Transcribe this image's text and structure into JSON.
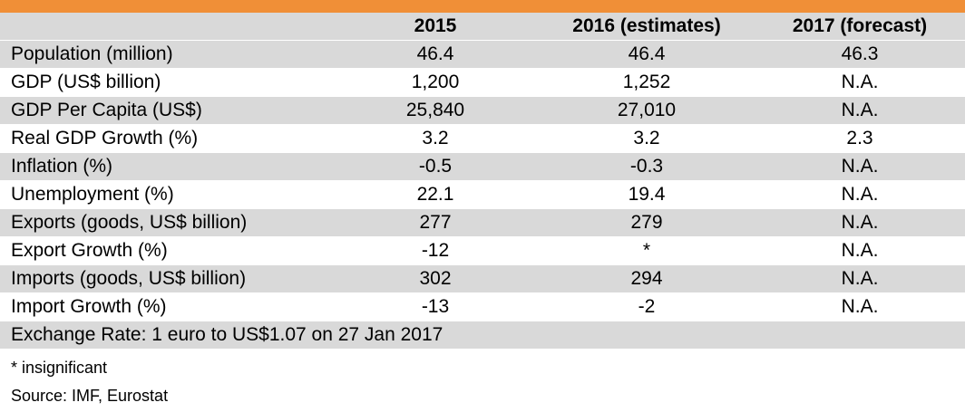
{
  "header": {
    "col_label": "",
    "col_2015": "2015",
    "col_2016": "2016 (estimates)",
    "col_2017": "2017 (forecast)"
  },
  "rows": [
    {
      "label": "Population (million)",
      "v2015": "46.4",
      "v2016": "46.4",
      "v2017": "46.3"
    },
    {
      "label": "GDP (US$ billion)",
      "v2015": "1,200",
      "v2016": "1,252",
      "v2017": "N.A."
    },
    {
      "label": "GDP Per Capita (US$)",
      "v2015": "25,840",
      "v2016": "27,010",
      "v2017": "N.A."
    },
    {
      "label": "Real GDP Growth (%)",
      "v2015": "3.2",
      "v2016": "3.2",
      "v2017": "2.3"
    },
    {
      "label": "Inflation (%)",
      "v2015": "-0.5",
      "v2016": "-0.3",
      "v2017": "N.A."
    },
    {
      "label": "Unemployment (%)",
      "v2015": "22.1",
      "v2016": "19.4",
      "v2017": "N.A."
    },
    {
      "label": "Exports (goods, US$ billion)",
      "v2015": "277",
      "v2016": "279",
      "v2017": "N.A."
    },
    {
      "label": "Export Growth (%)",
      "v2015": "-12",
      "v2016": "*",
      "v2017": "N.A."
    },
    {
      "label": "Imports (goods, US$ billion)",
      "v2015": "302",
      "v2016": "294",
      "v2017": "N.A."
    },
    {
      "label": "Import Growth (%)",
      "v2015": "-13",
      "v2016": "-2",
      "v2017": "N.A."
    }
  ],
  "exchange_rate": "Exchange Rate: 1 euro to US$1.07 on 27 Jan 2017",
  "notes": {
    "footnote": "* insignificant",
    "source": "Source: IMF, Eurostat"
  },
  "colors": {
    "accent_bar": "#f08f37",
    "shaded_row": "#d9d9d9",
    "plain_row": "#ffffff"
  }
}
